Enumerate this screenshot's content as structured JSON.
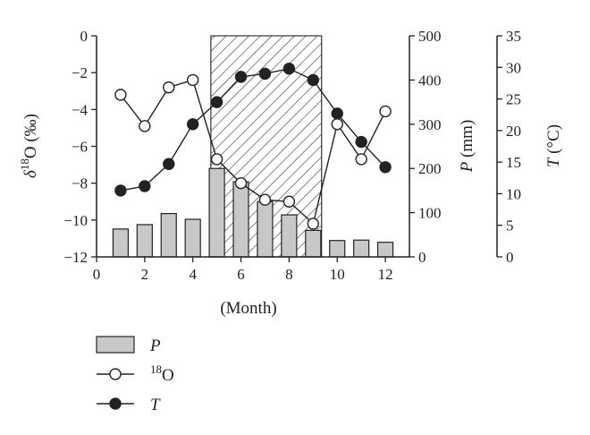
{
  "chart_data": {
    "type": "bar+line",
    "x": [
      1,
      2,
      3,
      4,
      5,
      6,
      7,
      8,
      9,
      10,
      11,
      12
    ],
    "xlabel": "(Month)",
    "xlim": [
      0,
      13
    ],
    "xticks": [
      0,
      2,
      4,
      6,
      8,
      10,
      12
    ],
    "shaded_period": {
      "start": 4.75,
      "end": 9.35,
      "pattern": "diagonal-hatch"
    },
    "axes": {
      "d18O": {
        "label_symbol": "δ",
        "label_sup": "18",
        "label_rest": "O (‰)",
        "range": [
          -12,
          0
        ],
        "ticks": [
          0,
          -2,
          -4,
          -6,
          -8,
          -10,
          -12
        ]
      },
      "P": {
        "label_var": "P",
        "label_unit": " (mm)",
        "range": [
          0,
          500
        ],
        "ticks": [
          500,
          400,
          300,
          200,
          100,
          0
        ]
      },
      "T": {
        "label_var": "T",
        "label_unit": " (°C)",
        "range": [
          0,
          35
        ],
        "ticks": [
          35,
          30,
          25,
          20,
          15,
          10,
          5,
          0
        ]
      }
    },
    "series": [
      {
        "name": "P",
        "kind": "bar",
        "axis": "P",
        "color": "#c8c8c8",
        "values": [
          63,
          73,
          98,
          85,
          200,
          170,
          125,
          95,
          60,
          37,
          38,
          33
        ]
      },
      {
        "name": "18O",
        "kind": "line-open",
        "axis": "d18O",
        "color": "#222222",
        "values": [
          -3.2,
          -4.9,
          -2.8,
          -2.4,
          -6.7,
          -8.0,
          -8.9,
          -9.0,
          -10.2,
          -4.8,
          -6.7,
          -4.1
        ]
      },
      {
        "name": "T",
        "kind": "line-filled",
        "axis": "T",
        "color": "#222222",
        "values": [
          10.5,
          11.2,
          14.7,
          21.0,
          24.5,
          28.5,
          29.0,
          29.8,
          28.0,
          22.7,
          18.2,
          14.2
        ]
      }
    ],
    "legend": {
      "placement": "bottom-left",
      "items": [
        {
          "symbol": "bar",
          "italic": true,
          "text": "P",
          "sup": ""
        },
        {
          "symbol": "open-circle",
          "italic": false,
          "text": "O",
          "sup": "18"
        },
        {
          "symbol": "filled-circle",
          "italic": true,
          "text": "T",
          "sup": ""
        }
      ]
    }
  }
}
